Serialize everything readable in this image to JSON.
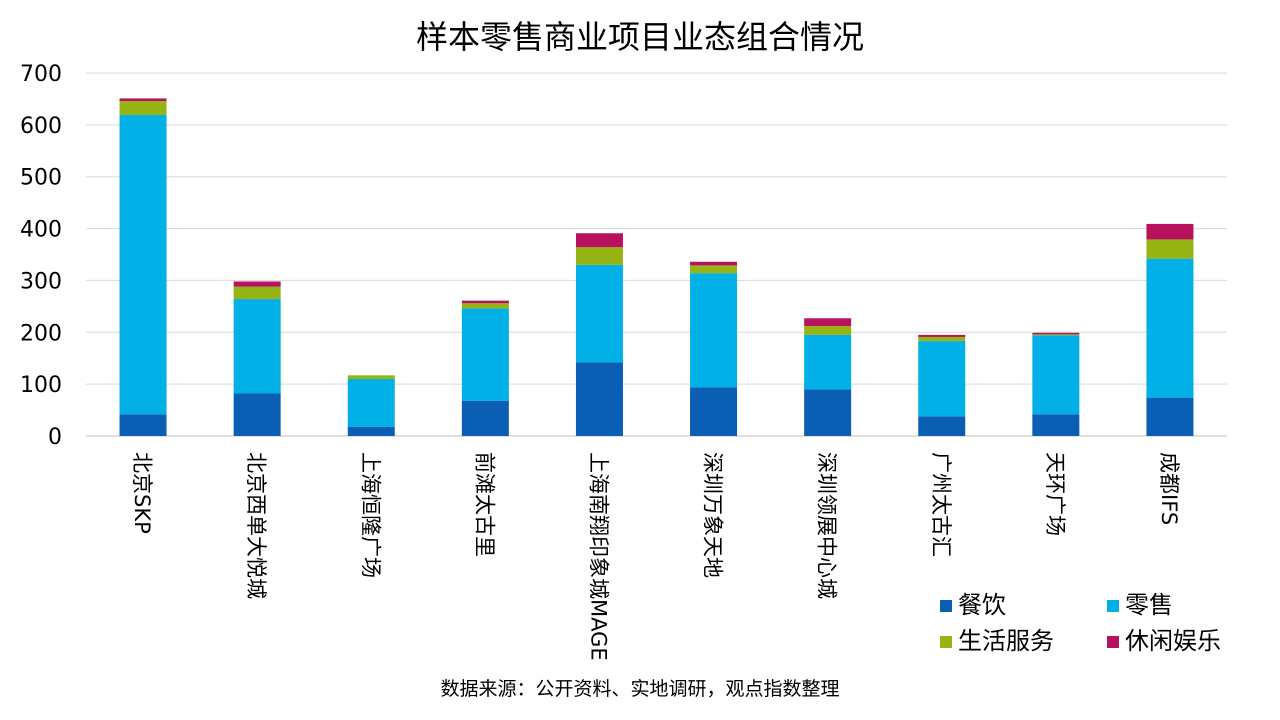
{
  "chart_data": {
    "type": "bar",
    "stacked": true,
    "title": "样本零售商业项目业态组合情况",
    "source": "数据来源：公开资料、实地调研，观点指数整理",
    "categories": [
      "北京SKP",
      "北京西单大悦城",
      "上海恒隆广场",
      "前滩太古里",
      "上海南翔印象城MAGE",
      "深圳万象天地",
      "深圳领展中心城",
      "广州太古汇",
      "天环广场",
      "成都IFS"
    ],
    "ylim": [
      0,
      700
    ],
    "yticks": [
      0,
      100,
      200,
      300,
      400,
      500,
      600,
      700
    ],
    "grid": true,
    "legend_position": "bottom-right",
    "series": [
      {
        "name": "餐饮",
        "color": "#0a5fb4",
        "values": [
          42,
          82,
          18,
          68,
          142,
          94,
          90,
          38,
          42,
          74
        ]
      },
      {
        "name": "零售",
        "color": "#00b0e6",
        "values": [
          577,
          182,
          92,
          178,
          188,
          220,
          105,
          145,
          152,
          268
        ]
      },
      {
        "name": "生活服务",
        "color": "#96b414",
        "values": [
          27,
          24,
          7,
          10,
          34,
          15,
          17,
          8,
          2,
          37
        ]
      },
      {
        "name": "休闲娱乐",
        "color": "#b8125e",
        "values": [
          5,
          10,
          0,
          5,
          27,
          7,
          15,
          4,
          3,
          30
        ]
      }
    ]
  }
}
